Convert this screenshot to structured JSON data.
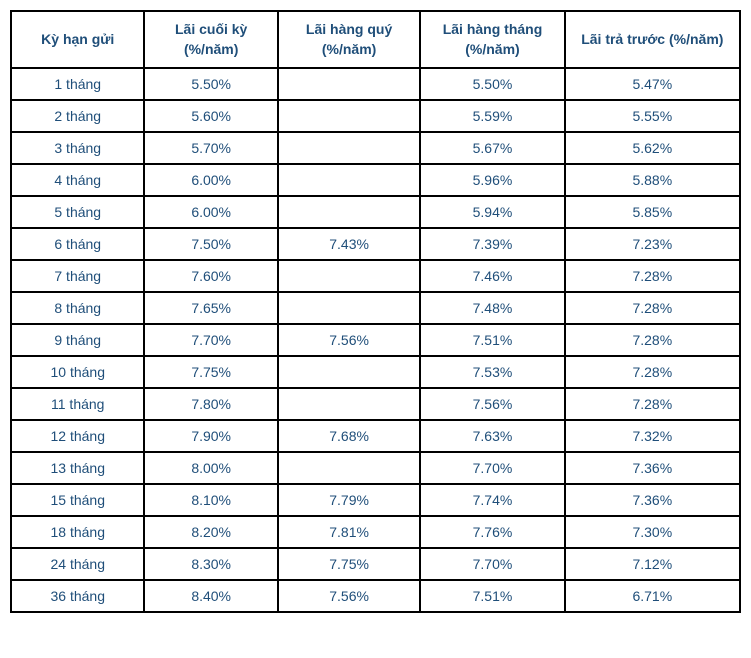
{
  "table": {
    "headers": {
      "term": "Kỳ hạn gửi",
      "end": "Lãi cuối kỳ (%/năm)",
      "quarterly": "Lãi hàng quý (%/năm)",
      "monthly": "Lãi hàng tháng (%/năm)",
      "prepaid": "Lãi trả trước (%/năm)"
    },
    "rows": [
      {
        "term": "1 tháng",
        "end": "5.50%",
        "quarterly": "",
        "monthly": "5.50%",
        "prepaid": "5.47%"
      },
      {
        "term": "2 tháng",
        "end": "5.60%",
        "quarterly": "",
        "monthly": "5.59%",
        "prepaid": "5.55%"
      },
      {
        "term": "3 tháng",
        "end": "5.70%",
        "quarterly": "",
        "monthly": "5.67%",
        "prepaid": "5.62%"
      },
      {
        "term": "4 tháng",
        "end": "6.00%",
        "quarterly": "",
        "monthly": "5.96%",
        "prepaid": "5.88%"
      },
      {
        "term": "5 tháng",
        "end": "6.00%",
        "quarterly": "",
        "monthly": "5.94%",
        "prepaid": "5.85%"
      },
      {
        "term": "6 tháng",
        "end": "7.50%",
        "quarterly": "7.43%",
        "monthly": "7.39%",
        "prepaid": "7.23%"
      },
      {
        "term": "7 tháng",
        "end": "7.60%",
        "quarterly": "",
        "monthly": "7.46%",
        "prepaid": "7.28%"
      },
      {
        "term": "8 tháng",
        "end": "7.65%",
        "quarterly": "",
        "monthly": "7.48%",
        "prepaid": "7.28%"
      },
      {
        "term": "9 tháng",
        "end": "7.70%",
        "quarterly": "7.56%",
        "monthly": "7.51%",
        "prepaid": "7.28%"
      },
      {
        "term": "10 tháng",
        "end": "7.75%",
        "quarterly": "",
        "monthly": "7.53%",
        "prepaid": "7.28%"
      },
      {
        "term": "11 tháng",
        "end": "7.80%",
        "quarterly": "",
        "monthly": "7.56%",
        "prepaid": "7.28%"
      },
      {
        "term": "12 tháng",
        "end": "7.90%",
        "quarterly": "7.68%",
        "monthly": "7.63%",
        "prepaid": "7.32%"
      },
      {
        "term": "13 tháng",
        "end": "8.00%",
        "quarterly": "",
        "monthly": "7.70%",
        "prepaid": "7.36%"
      },
      {
        "term": "15 tháng",
        "end": "8.10%",
        "quarterly": "7.79%",
        "monthly": "7.74%",
        "prepaid": "7.36%"
      },
      {
        "term": "18 tháng",
        "end": "8.20%",
        "quarterly": "7.81%",
        "monthly": "7.76%",
        "prepaid": "7.30%"
      },
      {
        "term": "24 tháng",
        "end": "8.30%",
        "quarterly": "7.75%",
        "monthly": "7.70%",
        "prepaid": "7.12%"
      },
      {
        "term": "36  tháng",
        "end": "8.40%",
        "quarterly": "7.56%",
        "monthly": "7.51%",
        "prepaid": "6.71%"
      }
    ],
    "colors": {
      "text": "#1f4e79",
      "border": "#000000",
      "background": "#ffffff"
    }
  }
}
